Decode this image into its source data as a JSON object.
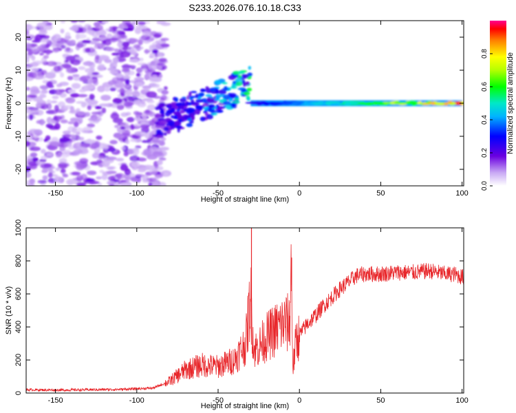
{
  "title": "S233.2026.076.10.18.C33",
  "chart_data": [
    {
      "type": "heatmap",
      "name": "spectrogram",
      "xlabel": "Height of straight line (km)",
      "ylabel": "Frequency (Hz)",
      "xlim": [
        -168,
        101
      ],
      "ylim": [
        -25,
        25
      ],
      "xticks": [
        -150,
        -100,
        -50,
        0,
        50,
        100
      ],
      "yticks": [
        -20,
        -10,
        0,
        10,
        20
      ],
      "colorbar": {
        "label": "Normalized spectral amplitude",
        "range": [
          0.0,
          1.0
        ],
        "ticks": [
          0.0,
          0.2,
          0.4,
          0.6,
          0.8
        ]
      },
      "features": [
        {
          "name": "noise-region",
          "x": [
            -168,
            -88
          ],
          "freq": [
            -25,
            25
          ],
          "amplitude": 0.1
        },
        {
          "name": "transition",
          "x": [
            -88,
            -30
          ],
          "freq": [
            -10,
            10
          ],
          "amplitude": 0.25
        },
        {
          "name": "signal-line",
          "x": [
            -30,
            100
          ],
          "freq": [
            0,
            0
          ],
          "amplitude": [
            0.25,
            0.95
          ]
        }
      ]
    },
    {
      "type": "line",
      "name": "snr",
      "xlabel": "Height of straight line (km)",
      "ylabel": "SNR (10 * v/v)",
      "xlim": [
        -168,
        101
      ],
      "ylim": [
        0,
        1000
      ],
      "xticks": [
        -150,
        -100,
        -50,
        0,
        50,
        100
      ],
      "yticks": [
        0,
        200,
        400,
        600,
        800,
        1000
      ],
      "series": [
        {
          "name": "SNR",
          "color": "#e8262a",
          "x": [
            -168,
            -150,
            -130,
            -110,
            -90,
            -80,
            -70,
            -60,
            -50,
            -40,
            -33,
            -30,
            -28,
            -25,
            -20,
            -15,
            -10,
            -6,
            -5,
            -4,
            -2,
            0,
            5,
            10,
            15,
            20,
            25,
            30,
            35,
            40,
            50,
            60,
            70,
            80,
            90,
            95,
            101
          ],
          "values": [
            20,
            18,
            20,
            22,
            30,
            70,
            140,
            170,
            160,
            200,
            300,
            580,
            260,
            280,
            340,
            380,
            420,
            420,
            780,
            150,
            320,
            350,
            420,
            470,
            530,
            580,
            630,
            670,
            710,
            720,
            720,
            730,
            730,
            740,
            720,
            720,
            700
          ]
        }
      ]
    }
  ]
}
